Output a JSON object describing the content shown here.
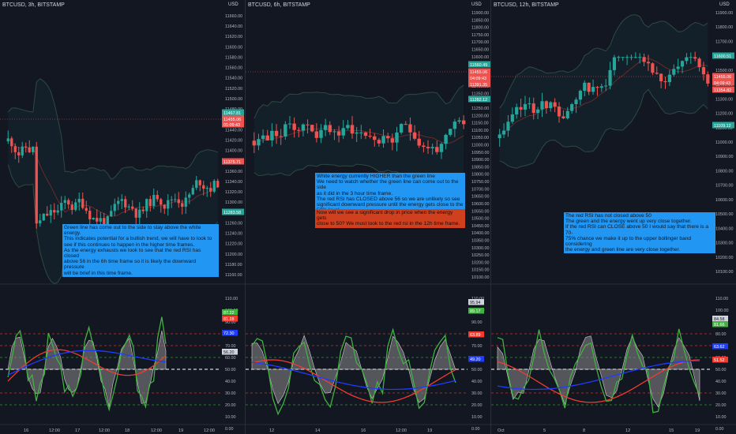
{
  "colors": {
    "background": "#131722",
    "up": "#26a69a",
    "down": "#ef5350",
    "note_blue": "#2196f3",
    "note_red": "#d0401f",
    "rsi_red": "#f23b2f",
    "rsi_blue": "#1e3cff",
    "rsi_green": "#3fb23f",
    "energy_fill": "#8b8b8b"
  },
  "panes": [
    {
      "title": "BTCUSD, 3h, BITSTAMP",
      "currency": "USD",
      "price_ticks": [
        "11660.00",
        "11640.00",
        "11620.00",
        "11600.00",
        "11580.00",
        "11560.00",
        "11540.00",
        "11520.00",
        "11500.00",
        "11480.00",
        "11460.00",
        "11440.00",
        "11420.00",
        "11400.00",
        "11380.00",
        "11360.00",
        "11340.00",
        "11320.00",
        "11300.00",
        "11280.00",
        "11260.00",
        "11240.00",
        "11220.00",
        "11200.00",
        "11180.00",
        "11160.00"
      ],
      "price_labels": [
        {
          "text": "11467.81",
          "color": "#26a69a"
        },
        {
          "text": "11455.06",
          "color": "#ef5350"
        },
        {
          "text": "01:09:43",
          "color": "#ef5350"
        },
        {
          "text": "11375.71",
          "color": "#ef5350"
        },
        {
          "text": "11283.58",
          "color": "#26a69a"
        }
      ],
      "osc_ticks": [
        "110.00",
        "100.00",
        "90.00",
        "80.00",
        "70.00",
        "60.00",
        "50.00",
        "40.00",
        "30.00",
        "20.00",
        "10.00",
        "0.00"
      ],
      "osc_labels": [
        {
          "text": "87.22",
          "color": "#3fb23f"
        },
        {
          "text": "81.28",
          "color": "#f23b2f"
        },
        {
          "text": "72.30",
          "color": "#1e3cff"
        },
        {
          "text": "56.20",
          "color": "#d1d4dc"
        }
      ],
      "time_ticks": [
        "16",
        "12:00",
        "17",
        "12:00",
        "18",
        "12:00",
        "19",
        "12:00"
      ],
      "notes": [
        {
          "color": "blue",
          "lines": [
            "Green line has come out to the side to stay above the white energy.",
            "This indicates potential for a bullish trend, we will have to look to",
            "see if this continues to happen in the higher time frames.",
            "As the energy exhausts we look to see that the red RSI has closed",
            "above 56 in the 6h time frame so it is likely the downward pressure",
            "will be brief in this time frame."
          ]
        }
      ]
    },
    {
      "title": "BTCUSD, 6h, BITSTAMP",
      "currency": "USD",
      "price_ticks": [
        "11900.00",
        "11850.00",
        "11800.00",
        "11750.00",
        "11700.00",
        "11650.00",
        "11600.00",
        "11550.00",
        "11500.00",
        "11450.00",
        "11400.00",
        "11350.00",
        "11300.00",
        "11250.00",
        "11200.00",
        "11150.00",
        "11100.00",
        "11050.00",
        "11000.00",
        "10950.00",
        "10900.00",
        "10850.00",
        "10800.00",
        "10750.00",
        "10700.00",
        "10650.00",
        "10600.00",
        "10550.00",
        "10500.00",
        "10450.00",
        "10400.00",
        "10350.00",
        "10300.00",
        "10250.00",
        "10200.00",
        "10150.00",
        "10100.00"
      ],
      "price_labels": [
        {
          "text": "11560.49",
          "color": "#26a69a"
        },
        {
          "text": "11455.06",
          "color": "#ef5350"
        },
        {
          "text": "04:09:43",
          "color": "#ef5350"
        },
        {
          "text": "11391.35",
          "color": "#ef5350"
        },
        {
          "text": "11282.12",
          "color": "#26a69a"
        }
      ],
      "osc_ticks": [
        "110.00",
        "100.00",
        "90.00",
        "80.00",
        "70.00",
        "60.00",
        "50.00",
        "40.00",
        "30.00",
        "20.00",
        "10.00",
        "0.00"
      ],
      "osc_labels": [
        {
          "text": "95.94",
          "color": "#d1d4dc"
        },
        {
          "text": "89.17",
          "color": "#3fb23f"
        },
        {
          "text": "63.89",
          "color": "#f23b2f"
        },
        {
          "text": "49.20",
          "color": "#1e3cff"
        }
      ],
      "time_ticks": [
        "12",
        "14",
        "16",
        "12:00",
        "19"
      ],
      "notes": [
        {
          "color": "blue",
          "lines": [
            "White energy currently HIGHER than the green line",
            "We need to watch whether the green line can come out to the side",
            "as it did in the 3 hour time frame.",
            "The red RSI has CLOSED above 56 so we are unlikely so see",
            "significant downward pressure until the energy gets close to the",
            "50% level."
          ]
        },
        {
          "color": "red",
          "lines": [
            "Now will we see a significant drop in price when the energy gets",
            "close to 50? We must look to the red rsi in the 12h time frame."
          ]
        }
      ]
    },
    {
      "title": "BTCUSD, 12h, BITSTAMP",
      "currency": "USD",
      "price_ticks": [
        "11900.00",
        "11800.00",
        "11700.00",
        "11600.00",
        "11500.00",
        "11400.00",
        "11300.00",
        "11200.00",
        "11100.00",
        "11000.00",
        "10900.00",
        "10800.00",
        "10700.00",
        "10600.00",
        "10500.00",
        "10400.00",
        "10300.00",
        "10200.00",
        "10100.00"
      ],
      "price_labels": [
        {
          "text": "11600.51",
          "color": "#26a69a"
        },
        {
          "text": "11455.06",
          "color": "#ef5350"
        },
        {
          "text": "04:09:43",
          "color": "#ef5350"
        },
        {
          "text": "11354.82",
          "color": "#ef5350"
        },
        {
          "text": "11109.12",
          "color": "#26a69a"
        }
      ],
      "osc_ticks": [
        "110.00",
        "100.00",
        "90.00",
        "80.00",
        "70.00",
        "60.00",
        "50.00",
        "40.00",
        "30.00",
        "20.00",
        "10.00",
        "0.00"
      ],
      "osc_labels": [
        {
          "text": "84.58",
          "color": "#d1d4dc"
        },
        {
          "text": "81.66",
          "color": "#3fb23f"
        },
        {
          "text": "63.62",
          "color": "#1e3cff"
        },
        {
          "text": "51.52",
          "color": "#f23b2f"
        }
      ],
      "time_ticks": [
        "Oct",
        "5",
        "8",
        "12",
        "15",
        "19"
      ],
      "notes": [
        {
          "color": "blue",
          "lines": [
            "The red RSI has not closed above 50",
            "The green and the energy went up very close together.",
            "If the red RSI can CLOSE above 50 I would say that there is a 70-",
            "75% chance we make it up to the upper bollinger band considering",
            "the energy and green line are very close together."
          ]
        }
      ]
    }
  ]
}
